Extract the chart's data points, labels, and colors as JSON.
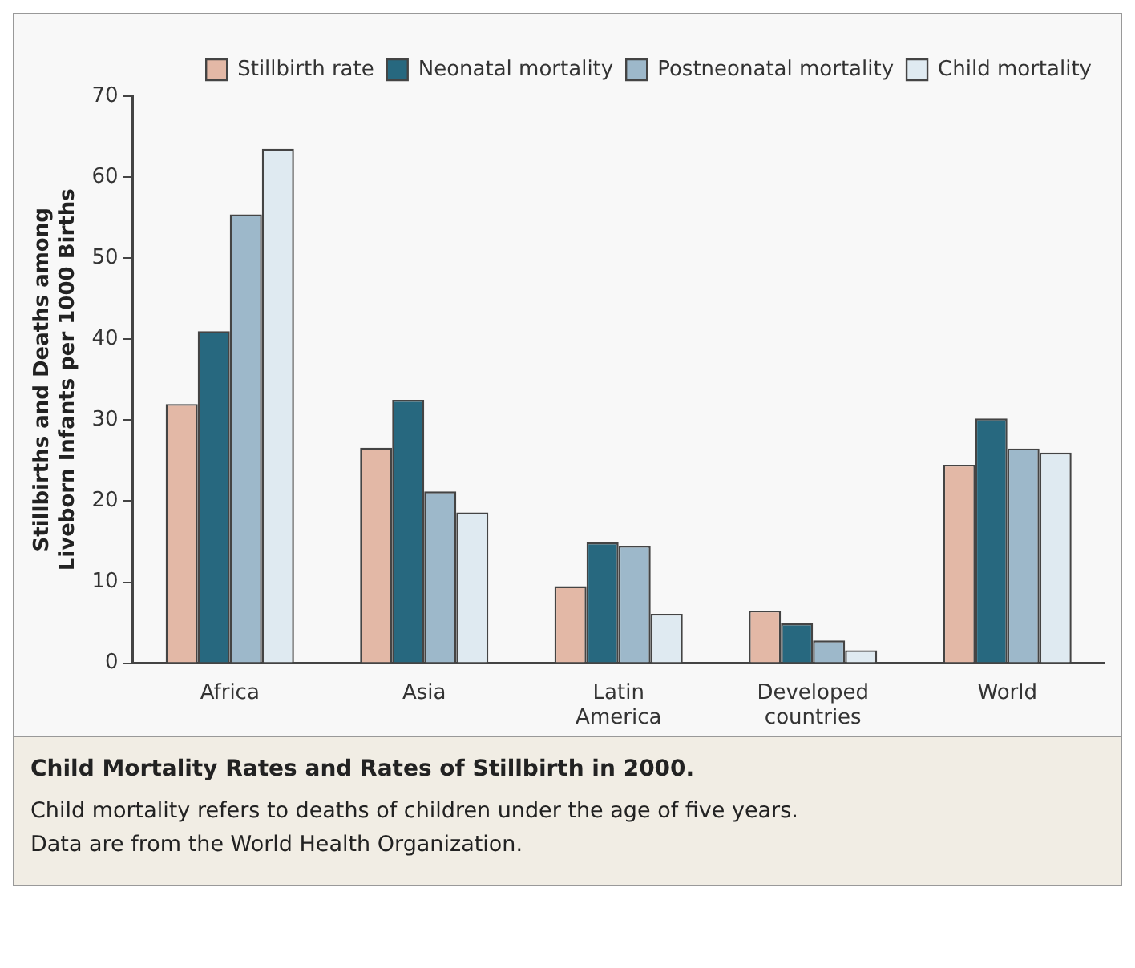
{
  "chart_data": {
    "type": "bar",
    "title": "Child Mortality Rates and Rates of Stillbirth in 2000.",
    "annotations": [
      "Child mortality refers to deaths of children under the age of five years.",
      "Data are from the World Health Organization."
    ],
    "ylabel": "Stillbirths and Deaths among Liveborn Infants per 1000 Births",
    "categories": [
      "Africa",
      "Asia",
      "Latin America",
      "Developed countries",
      "World"
    ],
    "series": [
      {
        "name": "Stillbirth rate",
        "color": "#e3b8a6",
        "values": [
          32,
          26.6,
          9.5,
          6.5,
          24.5
        ]
      },
      {
        "name": "Neonatal mortality",
        "color": "#27687f",
        "values": [
          41,
          32.5,
          14.9,
          4.9,
          30.2
        ]
      },
      {
        "name": "Postneonatal mortality",
        "color": "#9db8ca",
        "values": [
          55.4,
          21.2,
          14.5,
          2.8,
          26.5
        ]
      },
      {
        "name": "Child mortality",
        "color": "#dfeaf1",
        "values": [
          63.5,
          18.6,
          6.1,
          1.6,
          26
        ]
      }
    ],
    "ylim": [
      0,
      70
    ],
    "yticks": [
      0,
      10,
      20,
      30,
      40,
      50,
      60,
      70
    ],
    "grid": false,
    "legend": "top right"
  }
}
